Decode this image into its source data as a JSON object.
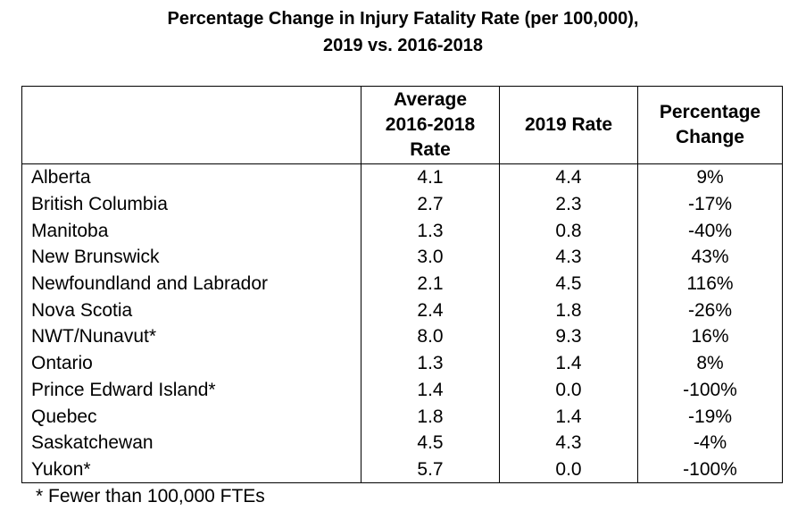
{
  "title": {
    "line1": "Percentage Change in Injury Fatality Rate (per 100,000),",
    "line2": "2019 vs. 2016-2018"
  },
  "table": {
    "headers": {
      "province": "",
      "avg_line1": "Average",
      "avg_line2": "2016-2018",
      "avg_line3": "Rate",
      "rate2019": "2019 Rate",
      "pct_line1": "Percentage",
      "pct_line2": "Change"
    },
    "rows": [
      {
        "province": "Alberta",
        "avg": "4.1",
        "rate2019": "4.4",
        "change": "9%"
      },
      {
        "province": "British Columbia",
        "avg": "2.7",
        "rate2019": "2.3",
        "change": "-17%"
      },
      {
        "province": "Manitoba",
        "avg": "1.3",
        "rate2019": "0.8",
        "change": "-40%"
      },
      {
        "province": "New Brunswick",
        "avg": "3.0",
        "rate2019": "4.3",
        "change": "43%"
      },
      {
        "province": "Newfoundland and Labrador",
        "avg": "2.1",
        "rate2019": "4.5",
        "change": "116%"
      },
      {
        "province": "Nova Scotia",
        "avg": "2.4",
        "rate2019": "1.8",
        "change": "-26%"
      },
      {
        "province": "NWT/Nunavut*",
        "avg": "8.0",
        "rate2019": "9.3",
        "change": "16%"
      },
      {
        "province": "Ontario",
        "avg": "1.3",
        "rate2019": "1.4",
        "change": "8%"
      },
      {
        "province": "Prince Edward Island*",
        "avg": "1.4",
        "rate2019": "0.0",
        "change": "-100%"
      },
      {
        "province": "Quebec",
        "avg": "1.8",
        "rate2019": "1.4",
        "change": "-19%"
      },
      {
        "province": "Saskatchewan",
        "avg": "4.5",
        "rate2019": "4.3",
        "change": "-4%"
      },
      {
        "province": "Yukon*",
        "avg": "5.7",
        "rate2019": "0.0",
        "change": "-100%"
      }
    ]
  },
  "footnote": "* Fewer than 100,000 FTEs"
}
